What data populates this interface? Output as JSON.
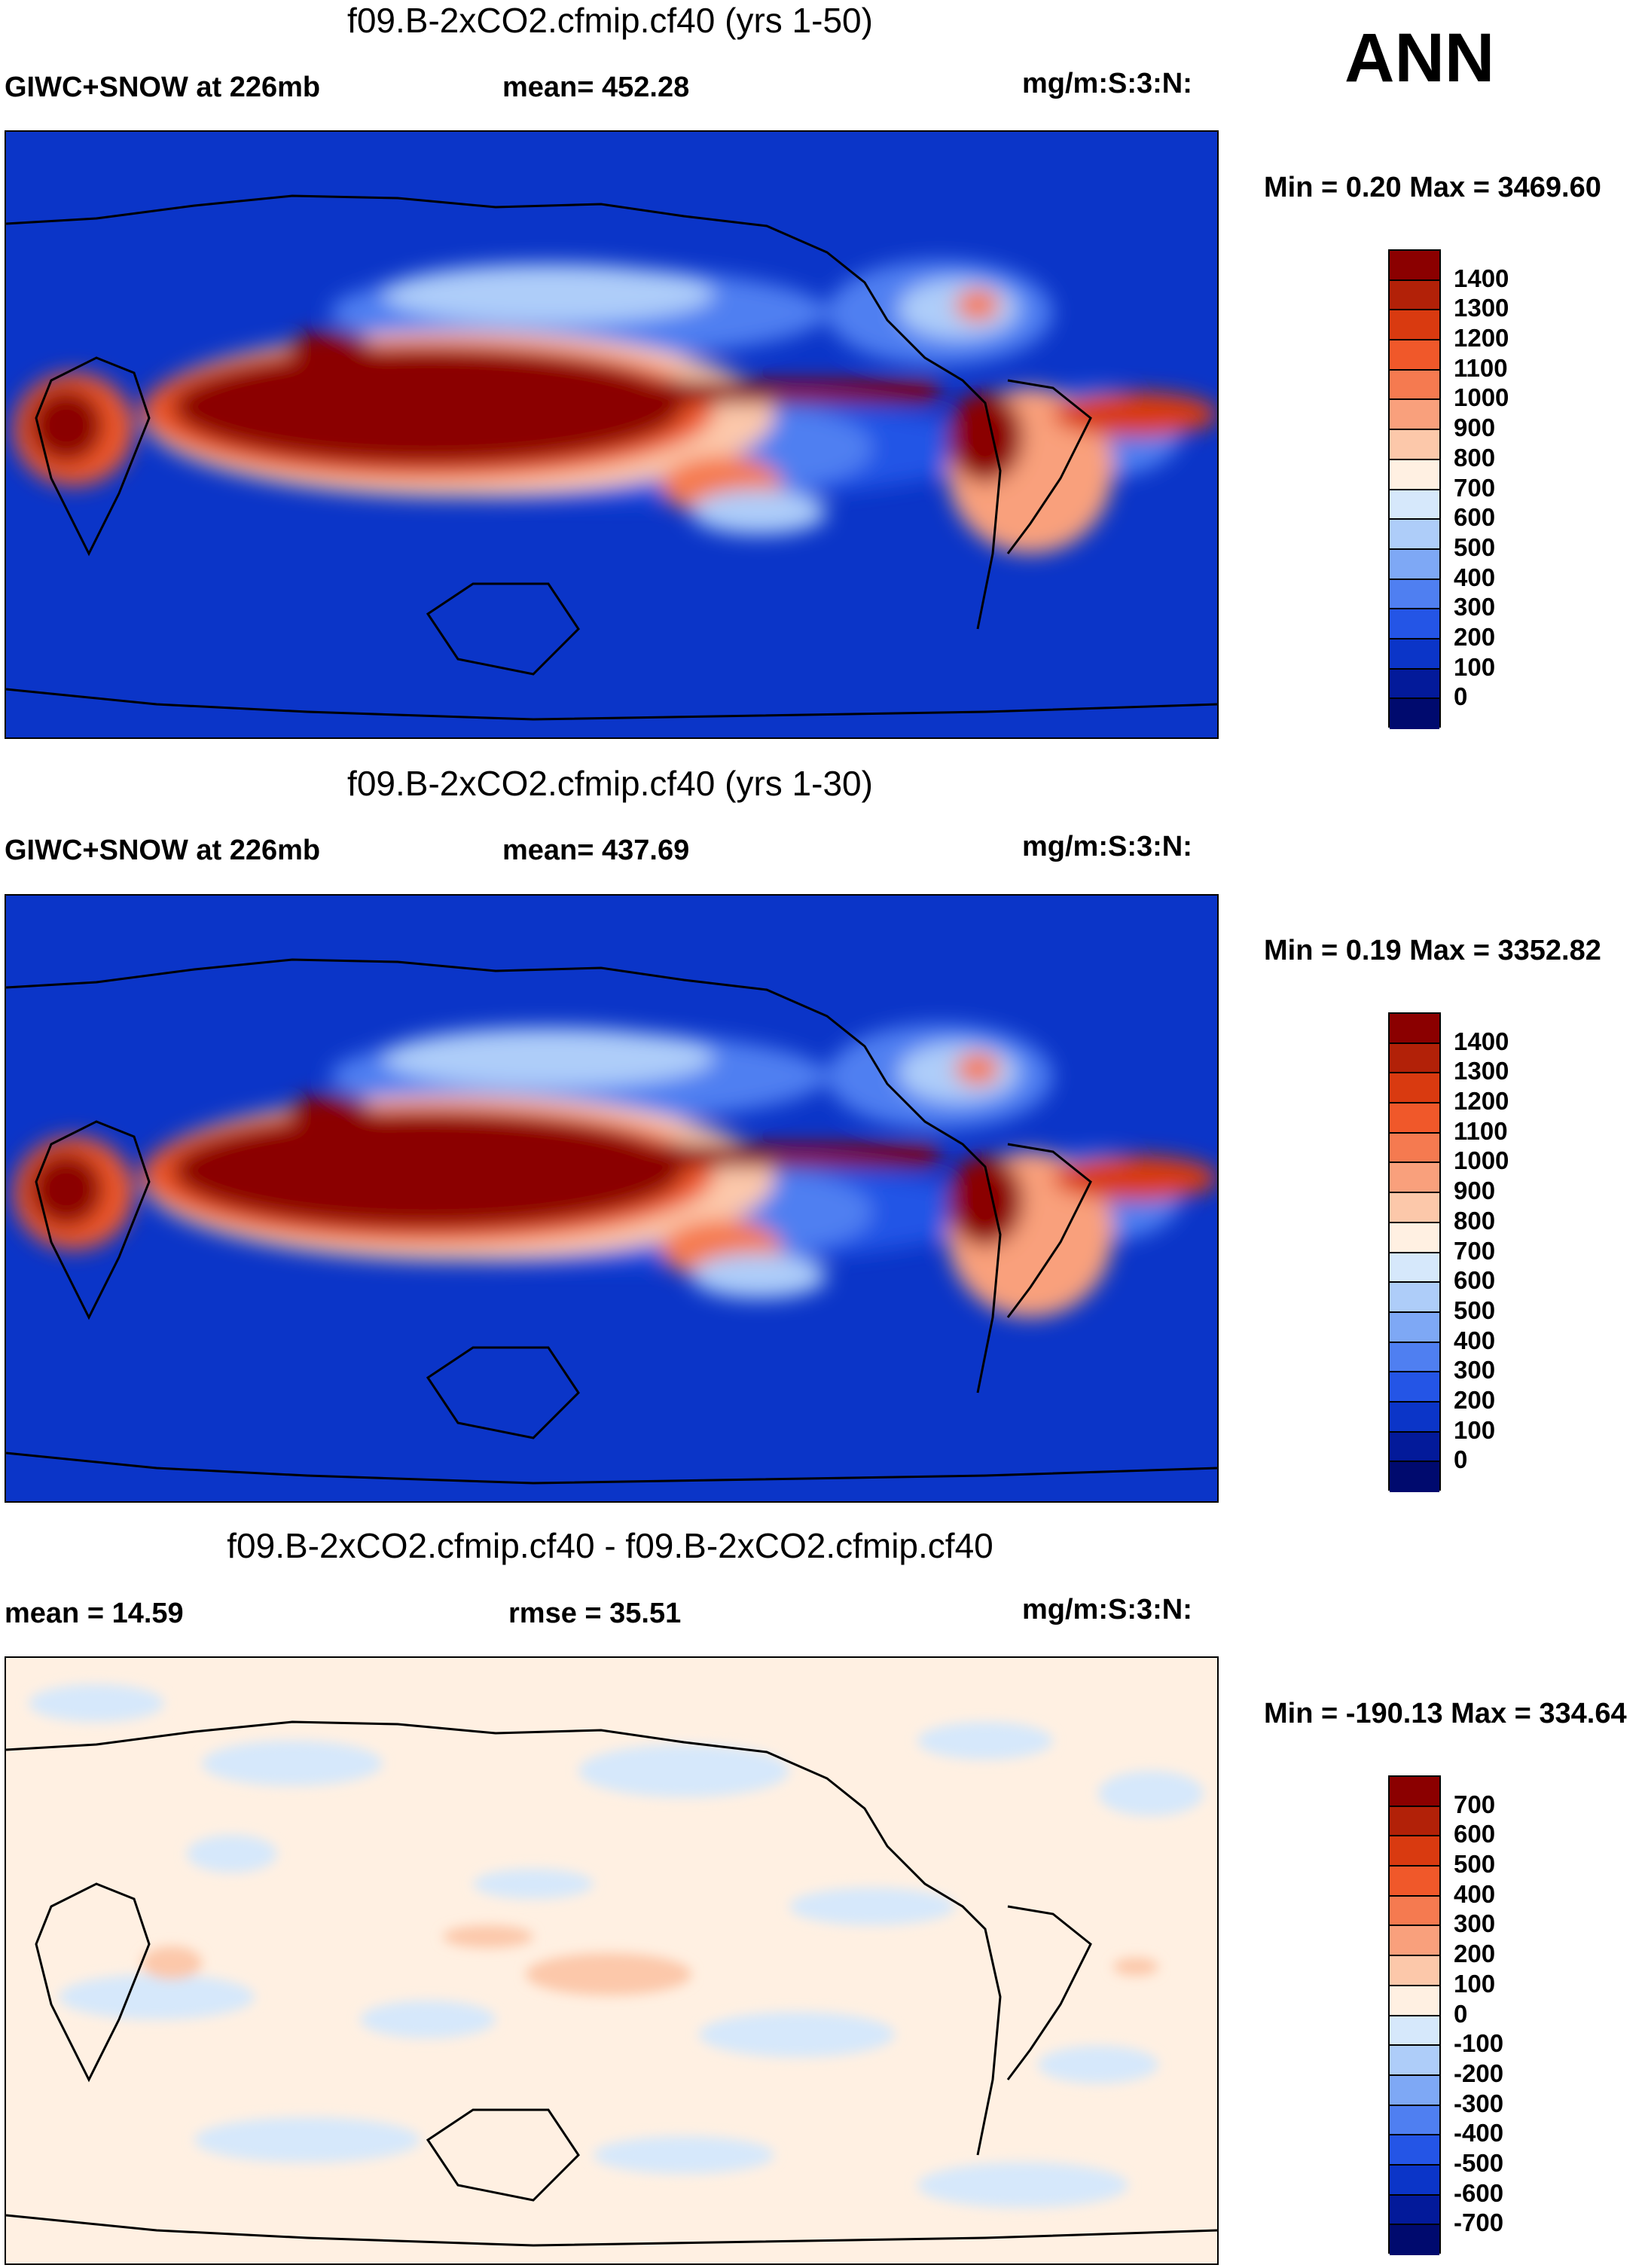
{
  "season": "ANN",
  "panels": [
    {
      "title": "f09.B-2xCO2.cfmip.cf40 (yrs 1-50)",
      "left_label": "GIWC+SNOW at 226mb",
      "center_label": "mean= 452.28",
      "units": "mg/m:S:3:N:",
      "minmax": "Min =   0.20 Max = 3469.60",
      "colorbar": {
        "levels": [
          "1400",
          "1300",
          "1200",
          "1100",
          "1000",
          "900",
          "800",
          "700",
          "600",
          "500",
          "400",
          "300",
          "200",
          "100",
          "0"
        ],
        "colors": [
          "#8b0000",
          "#b22108",
          "#d93a10",
          "#f0582a",
          "#f57a50",
          "#f9a07c",
          "#fcc8aa",
          "#fff0e2",
          "#d6e8fb",
          "#aecdf9",
          "#7ea8f5",
          "#4f7ff1",
          "#2455e6",
          "#0b35c8",
          "#031a9a",
          "#000a6e"
        ]
      },
      "variant": "full"
    },
    {
      "title": "f09.B-2xCO2.cfmip.cf40 (yrs 1-30)",
      "left_label": "GIWC+SNOW at 226mb",
      "center_label": "mean= 437.69",
      "units": "mg/m:S:3:N:",
      "minmax": "Min =   0.19 Max = 3352.82",
      "colorbar": {
        "levels": [
          "1400",
          "1300",
          "1200",
          "1100",
          "1000",
          "900",
          "800",
          "700",
          "600",
          "500",
          "400",
          "300",
          "200",
          "100",
          "0"
        ],
        "colors": [
          "#8b0000",
          "#b22108",
          "#d93a10",
          "#f0582a",
          "#f57a50",
          "#f9a07c",
          "#fcc8aa",
          "#fff0e2",
          "#d6e8fb",
          "#aecdf9",
          "#7ea8f5",
          "#4f7ff1",
          "#2455e6",
          "#0b35c8",
          "#031a9a",
          "#000a6e"
        ]
      },
      "variant": "full"
    },
    {
      "title": "f09.B-2xCO2.cfmip.cf40 - f09.B-2xCO2.cfmip.cf40",
      "left_label": "mean =  14.59",
      "center_label": "rmse =  35.51",
      "units": "mg/m:S:3:N:",
      "minmax": "Min = -190.13 Max = 334.64",
      "colorbar": {
        "levels": [
          "700",
          "600",
          "500",
          "400",
          "300",
          "200",
          "100",
          "0",
          "-100",
          "-200",
          "-300",
          "-400",
          "-500",
          "-600",
          "-700"
        ],
        "colors": [
          "#8b0000",
          "#b22108",
          "#d93a10",
          "#f0582a",
          "#f57a50",
          "#f9a07c",
          "#fcc8aa",
          "#fff0e2",
          "#d6e8fb",
          "#aecdf9",
          "#7ea8f5",
          "#4f7ff1",
          "#2455e6",
          "#0b35c8",
          "#031a9a",
          "#000a6e"
        ]
      },
      "variant": "diff"
    }
  ]
}
